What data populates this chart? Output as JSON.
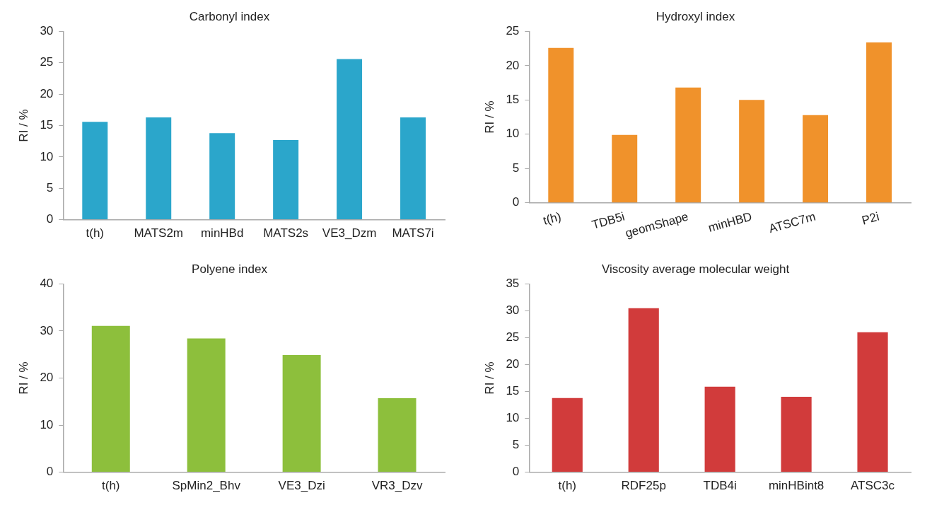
{
  "chart_data": [
    {
      "type": "bar",
      "title": "Carbonyl index",
      "ylabel": "RI / %",
      "categories": [
        "t(h)",
        "MATS2m",
        "minHBd",
        "MATS2s",
        "VE3_Dzm",
        "MATS7i"
      ],
      "values": [
        15.6,
        16.3,
        13.8,
        12.7,
        25.6,
        16.3
      ],
      "color": "#2ba6cb",
      "ylim": [
        0,
        30
      ],
      "yticks": [
        0,
        5,
        10,
        15,
        20,
        25,
        30
      ],
      "grid": false,
      "legend": false
    },
    {
      "type": "bar",
      "title": "Hydroxyl index",
      "ylabel": "RI / %",
      "categories": [
        "t(h)",
        "TDB5i",
        "geomShape",
        "minHBD",
        "ATSC7m",
        "P2i"
      ],
      "values": [
        22.6,
        9.9,
        16.8,
        15.0,
        12.8,
        23.4
      ],
      "color": "#f0922b",
      "ylim": [
        0,
        25
      ],
      "yticks": [
        0,
        5,
        10,
        15,
        20,
        25
      ],
      "grid": false,
      "legend": false
    },
    {
      "type": "bar",
      "title": "Polyene index",
      "ylabel": "RI / %",
      "categories": [
        "t(h)",
        "SpMin2_Bhv",
        "VE3_Dzi",
        "VR3_Dzv"
      ],
      "values": [
        31.1,
        28.4,
        24.9,
        15.7
      ],
      "color": "#8dbf3c",
      "ylim": [
        0,
        40
      ],
      "yticks": [
        0,
        10,
        20,
        30,
        40
      ],
      "grid": false,
      "legend": false
    },
    {
      "type": "bar",
      "title": "Viscosity average molecular weight",
      "ylabel": "RI / %",
      "categories": [
        "t(h)",
        "RDF25p",
        "TDB4i",
        "minHBint8",
        "ATSC3c"
      ],
      "values": [
        13.8,
        30.5,
        15.9,
        14.0,
        26.0
      ],
      "color": "#d13b3b",
      "ylim": [
        0,
        35
      ],
      "yticks": [
        0,
        5,
        10,
        15,
        20,
        25,
        30,
        35
      ],
      "grid": false,
      "legend": false
    }
  ]
}
